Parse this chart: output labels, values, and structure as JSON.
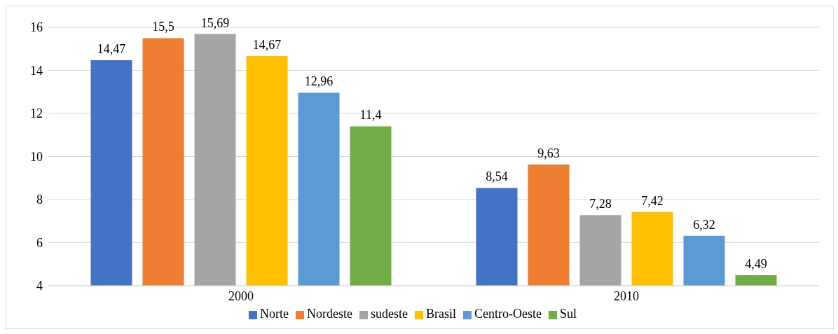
{
  "chart_data": {
    "type": "bar",
    "categories": [
      "2000",
      "2010"
    ],
    "series": [
      {
        "name": "Norte",
        "color": "#4472c4",
        "values": [
          14.47,
          8.54
        ],
        "value_labels": [
          "14,47",
          "8,54"
        ]
      },
      {
        "name": "Nordeste",
        "color": "#ed7d31",
        "values": [
          15.5,
          9.63
        ],
        "value_labels": [
          "15,5",
          "9,63"
        ]
      },
      {
        "name": "sudeste",
        "color": "#a5a5a5",
        "values": [
          15.69,
          7.28
        ],
        "value_labels": [
          "15,69",
          "7,28"
        ]
      },
      {
        "name": "Brasil",
        "color": "#ffc000",
        "values": [
          14.67,
          7.42
        ],
        "value_labels": [
          "14,67",
          "7,42"
        ]
      },
      {
        "name": "Centro-Oeste",
        "color": "#5b9bd5",
        "values": [
          12.96,
          6.32
        ],
        "value_labels": [
          "12,96",
          "6,32"
        ]
      },
      {
        "name": "Sul",
        "color": "#70ad47",
        "values": [
          11.4,
          4.49
        ],
        "value_labels": [
          "11,4",
          "4,49"
        ]
      }
    ],
    "ylim": [
      4,
      16
    ],
    "yticks": [
      4,
      6,
      8,
      10,
      12,
      14,
      16
    ],
    "grid": "y",
    "legend": "bottom"
  }
}
